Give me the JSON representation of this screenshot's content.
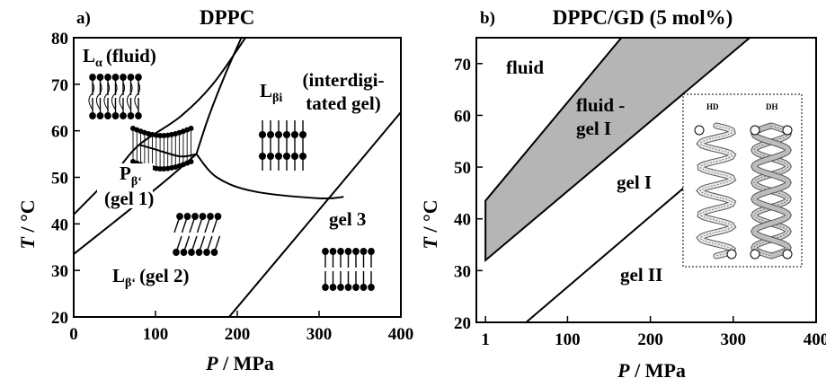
{
  "chart_data": [
    {
      "panel": "a)",
      "title": "DPPC",
      "type": "phase-diagram",
      "xlabel_var": "P",
      "xlabel_unit": " / MPa",
      "ylabel_var": "T",
      "ylabel_unit": " / °C",
      "xlim": [
        0,
        400
      ],
      "ylim": [
        20,
        80
      ],
      "xticks": [
        0,
        100,
        200,
        300,
        400
      ],
      "yticks": [
        20,
        30,
        40,
        50,
        60,
        70,
        80
      ],
      "boundaries": [
        {
          "name": "pretransition",
          "points": [
            [
              0,
              33.5
            ],
            [
              100,
              47.5
            ],
            [
              150,
              55
            ]
          ]
        },
        {
          "name": "main-transition-left",
          "points": [
            [
              0,
              42
            ],
            [
              50,
              51
            ],
            [
              80,
              57
            ],
            [
              130,
              63
            ],
            [
              170,
              70
            ],
            [
              210,
              80
            ]
          ]
        },
        {
          "name": "main-transition-right",
          "points": [
            [
              150,
              55
            ],
            [
              165,
              63
            ],
            [
              185,
              72
            ],
            [
              205,
              80
            ]
          ]
        },
        {
          "name": "gel-interdigitated",
          "points": [
            [
              150,
              55
            ],
            [
              175,
              50
            ],
            [
              220,
              47
            ],
            [
              300,
              45.5
            ],
            [
              330,
              45.8
            ]
          ]
        },
        {
          "name": "gel3-boundary",
          "points": [
            [
              190,
              20
            ],
            [
              300,
              43
            ],
            [
              400,
              64
            ]
          ]
        },
        {
          "name": "ripple-boundary",
          "points": [
            [
              80,
              57
            ],
            [
              100,
              56
            ],
            [
              130,
              54.5
            ],
            [
              150,
              55
            ]
          ]
        }
      ],
      "regions": {
        "fluid_sym": "L",
        "fluid_sub": "α",
        "fluid_text": "(fluid)",
        "interdig_sym": "L",
        "interdig_sub": "βi",
        "interdig_text_1": "(interdigi-",
        "interdig_text_2": "tated gel)",
        "ripple_sym": "P",
        "ripple_sub": "β‘",
        "ripple_text": "(gel 1)",
        "gel2_sym": "L",
        "gel2_sub": "β‘",
        "gel2_text": "(gel 2)",
        "gel3_text": "gel 3"
      }
    },
    {
      "panel": "b)",
      "title": "DPPC/GD (5 mol%)",
      "type": "phase-diagram",
      "xlabel_var": "P",
      "xlabel_unit": " / MPa",
      "ylabel_var": "T",
      "ylabel_unit": " / °C",
      "xlim": [
        -10,
        400
      ],
      "ylim": [
        20,
        75
      ],
      "xticks": [
        1,
        100,
        200,
        300,
        400
      ],
      "yticks": [
        20,
        30,
        40,
        50,
        60,
        70
      ],
      "coexistence_region": {
        "upper": [
          [
            1,
            43.5
          ],
          [
            165,
            75
          ]
        ],
        "lower": [
          [
            1,
            32
          ],
          [
            320,
            75
          ]
        ],
        "fill": "#b5b5b5"
      },
      "boundaries": [
        {
          "name": "gel1-gel2",
          "points": [
            [
              50,
              20
            ],
            [
              255,
              48
            ]
          ]
        }
      ],
      "regions": {
        "fluid": "fluid",
        "coexist_1": "fluid -",
        "coexist_2": "gel I",
        "gel1": "gel I",
        "gel2": "gel II"
      },
      "inset": {
        "label_left": "HD",
        "label_right": "DH"
      }
    }
  ]
}
